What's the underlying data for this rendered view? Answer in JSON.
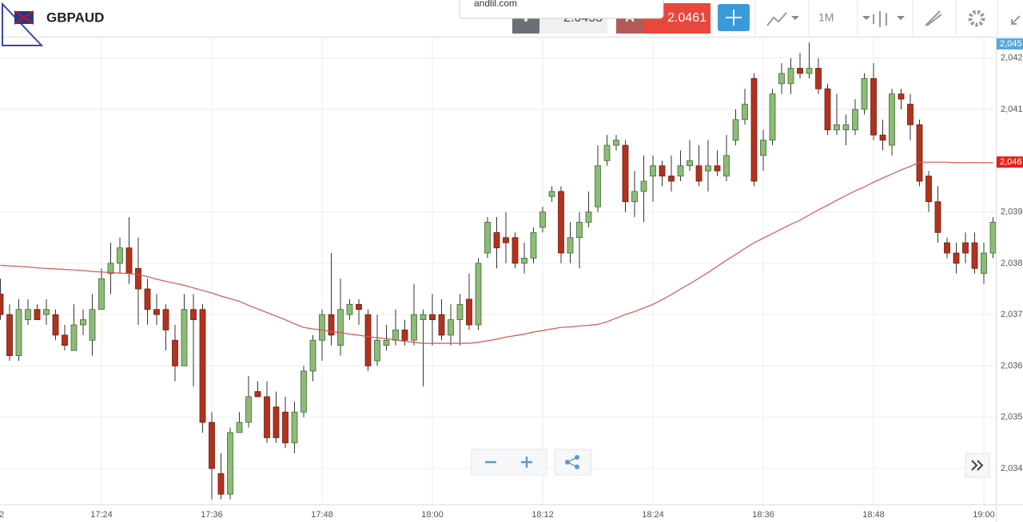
{
  "ui": {
    "symbol": "GBPAUD",
    "url": "andlil.com",
    "bid_label": "V",
    "bid": "2.0453",
    "ask_label": "A",
    "ask": "2.0461",
    "timeframe": "1M",
    "x_edge_label": "2",
    "price_tags": [
      {
        "label": "2,045",
        "color": "#5aa9d6"
      },
      {
        "label": "2,046",
        "color": "#e5231b"
      }
    ]
  },
  "chart_data": {
    "type": "candlestick",
    "up_color": "#8dbb78",
    "down_color": "#b2321e",
    "grid": true,
    "ylim": [
      2.0333,
      2.0424
    ],
    "yticks": [
      {
        "value": 2.042,
        "label": "2,042"
      },
      {
        "value": 2.041,
        "label": "2,041"
      },
      {
        "value": 2.039,
        "label": "2,039"
      },
      {
        "value": 2.038,
        "label": "2,038"
      },
      {
        "value": 2.037,
        "label": "2,037"
      },
      {
        "value": 2.036,
        "label": "2,036"
      },
      {
        "value": 2.035,
        "label": "2,035"
      },
      {
        "value": 2.034,
        "label": "2,034"
      }
    ],
    "categories": [
      null,
      null,
      null,
      null,
      null,
      null,
      null,
      null,
      null,
      null,
      null,
      "17:24",
      null,
      null,
      null,
      null,
      null,
      null,
      null,
      null,
      null,
      null,
      null,
      "17:36",
      null,
      null,
      null,
      null,
      null,
      null,
      null,
      null,
      null,
      null,
      null,
      "17:48",
      null,
      null,
      null,
      null,
      null,
      null,
      null,
      null,
      null,
      null,
      null,
      "18:00",
      null,
      null,
      null,
      null,
      null,
      null,
      null,
      null,
      null,
      null,
      null,
      "18:12",
      null,
      null,
      null,
      null,
      null,
      null,
      null,
      null,
      null,
      null,
      null,
      "18:24",
      null,
      null,
      null,
      null,
      null,
      null,
      null,
      null,
      null,
      null,
      null,
      "18:36",
      null,
      null,
      null,
      null,
      null,
      null,
      null,
      null,
      null,
      null,
      null,
      "18:48",
      null,
      null,
      null,
      null,
      null,
      null,
      null,
      null,
      null,
      null,
      null,
      "19:00",
      null
    ],
    "open": [
      2.0374,
      2.037,
      2.0362,
      2.0369,
      2.0371,
      2.037,
      2.037,
      2.0366,
      2.0363,
      2.0368,
      2.0365,
      2.0371,
      2.0378,
      2.038,
      2.0383,
      2.0379,
      2.0375,
      2.0371,
      2.0371,
      2.0365,
      2.036,
      2.0371,
      2.0371,
      2.0349,
      2.0339,
      2.0335,
      2.0347,
      2.0349,
      2.0355,
      2.0354,
      2.0352,
      2.0351,
      2.0345,
      2.0351,
      2.0359,
      2.0365,
      2.037,
      2.0364,
      2.037,
      2.0372,
      2.037,
      2.0361,
      2.0364,
      2.0365,
      2.0367,
      2.0365,
      2.0369,
      2.037,
      2.037,
      2.0366,
      2.0369,
      2.0373,
      2.0368,
      2.0382,
      2.0386,
      2.0385,
      2.0385,
      2.038,
      2.0381,
      2.0387,
      2.0393,
      2.0394,
      2.0382,
      2.0385,
      2.0388,
      2.0391,
      2.04,
      2.0403,
      2.0403,
      2.0392,
      2.0394,
      2.0397,
      2.0399,
      2.0397,
      2.0397,
      2.0399,
      2.0399,
      2.0398,
      2.0399,
      2.0397,
      2.0404,
      2.0408,
      2.0416,
      2.0401,
      2.0404,
      2.0415,
      2.0415,
      2.0418,
      2.0417,
      2.0418,
      2.0414,
      2.0406,
      2.0406,
      2.0406,
      2.041,
      2.0416,
      2.0405,
      2.0403,
      2.0413,
      2.0411,
      2.0407,
      2.0397,
      2.0392,
      2.0384,
      2.0382,
      2.0384,
      2.0384,
      2.0378,
      2.0382
    ],
    "close": [
      2.037,
      2.0362,
      2.0371,
      2.0371,
      2.0369,
      2.0371,
      2.0366,
      2.0364,
      2.0368,
      2.0369,
      2.0371,
      2.0377,
      2.038,
      2.0383,
      2.0378,
      2.0375,
      2.0371,
      2.037,
      2.0367,
      2.036,
      2.0371,
      2.0369,
      2.0349,
      2.034,
      2.0335,
      2.0347,
      2.0349,
      2.0354,
      2.0354,
      2.0346,
      2.0346,
      2.0345,
      2.0351,
      2.0359,
      2.0365,
      2.037,
      2.0366,
      2.0371,
      2.0372,
      2.0371,
      2.036,
      2.0365,
      2.0365,
      2.0367,
      2.0365,
      2.037,
      2.037,
      2.0369,
      2.0366,
      2.0369,
      2.0372,
      2.0368,
      2.038,
      2.0388,
      2.0383,
      2.0384,
      2.038,
      2.0381,
      2.0386,
      2.039,
      2.0394,
      2.0382,
      2.0385,
      2.0388,
      2.039,
      2.0399,
      2.0403,
      2.0404,
      2.0392,
      2.0394,
      2.0396,
      2.0399,
      2.0397,
      2.0396,
      2.0399,
      2.04,
      2.0396,
      2.0399,
      2.0398,
      2.0401,
      2.0408,
      2.0411,
      2.0396,
      2.0404,
      2.0413,
      2.0417,
      2.0418,
      2.0417,
      2.0418,
      2.0414,
      2.0406,
      2.0407,
      2.0407,
      2.041,
      2.0416,
      2.0405,
      2.0404,
      2.0413,
      2.0412,
      2.0407,
      2.0396,
      2.0392,
      2.0386,
      2.0382,
      2.038,
      2.0382,
      2.0379,
      2.0382,
      2.0388
    ],
    "high": [
      2.0377,
      2.0372,
      2.0373,
      2.0373,
      2.0372,
      2.0373,
      2.0371,
      2.0368,
      2.0372,
      2.0371,
      2.0374,
      2.0379,
      2.0384,
      2.0385,
      2.0389,
      2.0385,
      2.0377,
      2.0374,
      2.0372,
      2.0368,
      2.0374,
      2.0374,
      2.0372,
      2.0351,
      2.0343,
      2.0348,
      2.0351,
      2.0358,
      2.0357,
      2.0357,
      2.0355,
      2.0354,
      2.0353,
      2.036,
      2.0366,
      2.0371,
      2.0382,
      2.0377,
      2.0373,
      2.0373,
      2.0371,
      2.037,
      2.0368,
      2.0371,
      2.0369,
      2.0376,
      2.0371,
      2.0374,
      2.0373,
      2.0372,
      2.0374,
      2.0378,
      2.0381,
      2.0389,
      2.0389,
      2.039,
      2.0386,
      2.0384,
      2.0387,
      2.0391,
      2.0395,
      2.0395,
      2.0388,
      2.039,
      2.0394,
      2.0403,
      2.0405,
      2.0405,
      2.0404,
      2.0398,
      2.0401,
      2.0401,
      2.04,
      2.0401,
      2.0402,
      2.0404,
      2.0403,
      2.0404,
      2.0402,
      2.0405,
      2.041,
      2.0414,
      2.0417,
      2.0406,
      2.0414,
      2.0419,
      2.042,
      2.0421,
      2.0423,
      2.042,
      2.0415,
      2.0413,
      2.0409,
      2.0412,
      2.0417,
      2.0419,
      2.0408,
      2.0414,
      2.0414,
      2.0413,
      2.0408,
      2.0398,
      2.0395,
      2.0385,
      2.0384,
      2.0386,
      2.0386,
      2.0384,
      2.0389
    ],
    "low": [
      2.0369,
      2.0361,
      2.0361,
      2.0368,
      2.0369,
      2.0368,
      2.0365,
      2.0363,
      2.0363,
      2.0366,
      2.0362,
      2.0371,
      2.0374,
      2.0378,
      2.0376,
      2.0368,
      2.0368,
      2.0368,
      2.0363,
      2.0357,
      2.036,
      2.0356,
      2.0347,
      2.0334,
      2.0334,
      2.0334,
      2.0347,
      2.0348,
      2.0354,
      2.0345,
      2.0345,
      2.0344,
      2.0343,
      2.035,
      2.0357,
      2.0361,
      2.0364,
      2.0362,
      2.0369,
      2.0368,
      2.0359,
      2.036,
      2.0363,
      2.0364,
      2.0364,
      2.0364,
      2.0356,
      2.0364,
      2.0365,
      2.0364,
      2.0364,
      2.0367,
      2.0367,
      2.0381,
      2.0379,
      2.038,
      2.0379,
      2.0378,
      2.038,
      2.0386,
      2.0392,
      2.038,
      2.038,
      2.0379,
      2.0387,
      2.039,
      2.0399,
      2.0402,
      2.039,
      2.0389,
      2.0388,
      2.0392,
      2.0395,
      2.0394,
      2.0396,
      2.0398,
      2.0395,
      2.0394,
      2.0397,
      2.0396,
      2.0403,
      2.0407,
      2.0395,
      2.0398,
      2.0403,
      2.0413,
      2.0413,
      2.0416,
      2.0416,
      2.0413,
      2.0405,
      2.0405,
      2.0403,
      2.0405,
      2.0409,
      2.0404,
      2.0402,
      2.0401,
      2.041,
      2.0404,
      2.0395,
      2.039,
      2.0384,
      2.0381,
      2.0378,
      2.038,
      2.0378,
      2.0376,
      2.0381
    ],
    "ma": {
      "color": "#d9534f",
      "values": [
        2.03796,
        2.03795,
        2.03794,
        2.03793,
        2.03791,
        2.0379,
        2.03789,
        2.03788,
        2.03787,
        2.03786,
        2.03784,
        2.03783,
        2.03782,
        2.03781,
        2.0378,
        2.03778,
        2.03774,
        2.03769,
        2.03765,
        2.03761,
        2.03757,
        2.03752,
        2.03747,
        2.03742,
        2.03736,
        2.03731,
        2.03726,
        2.03718,
        2.03711,
        2.03704,
        2.03697,
        2.0369,
        2.03682,
        2.03675,
        2.03672,
        2.0367,
        2.03667,
        2.03665,
        2.03662,
        2.0366,
        2.03657,
        2.03655,
        2.03653,
        2.03651,
        2.03648,
        2.03646,
        2.03644,
        2.03644,
        2.03644,
        2.03644,
        2.03644,
        2.03644,
        2.03646,
        2.03649,
        2.03652,
        2.03656,
        2.03659,
        2.03662,
        2.03666,
        2.03669,
        2.03672,
        2.03675,
        2.03676,
        2.03678,
        2.03679,
        2.03681,
        2.03686,
        2.03693,
        2.037,
        2.03706,
        2.03713,
        2.0372,
        2.03729,
        2.03739,
        2.0375,
        2.0376,
        2.03771,
        2.03782,
        2.03794,
        2.03806,
        2.03817,
        2.03829,
        2.0384,
        2.03849,
        2.03858,
        2.03867,
        2.03876,
        2.03884,
        2.03894,
        2.03904,
        2.03913,
        2.03923,
        2.03932,
        2.03941,
        2.03949,
        2.03958,
        2.03966,
        2.03974,
        2.03982,
        2.03989,
        2.03997,
        2.03997,
        2.03997,
        2.03997,
        2.03996,
        2.03996,
        2.03996,
        2.03996,
        2.03996
      ]
    }
  }
}
